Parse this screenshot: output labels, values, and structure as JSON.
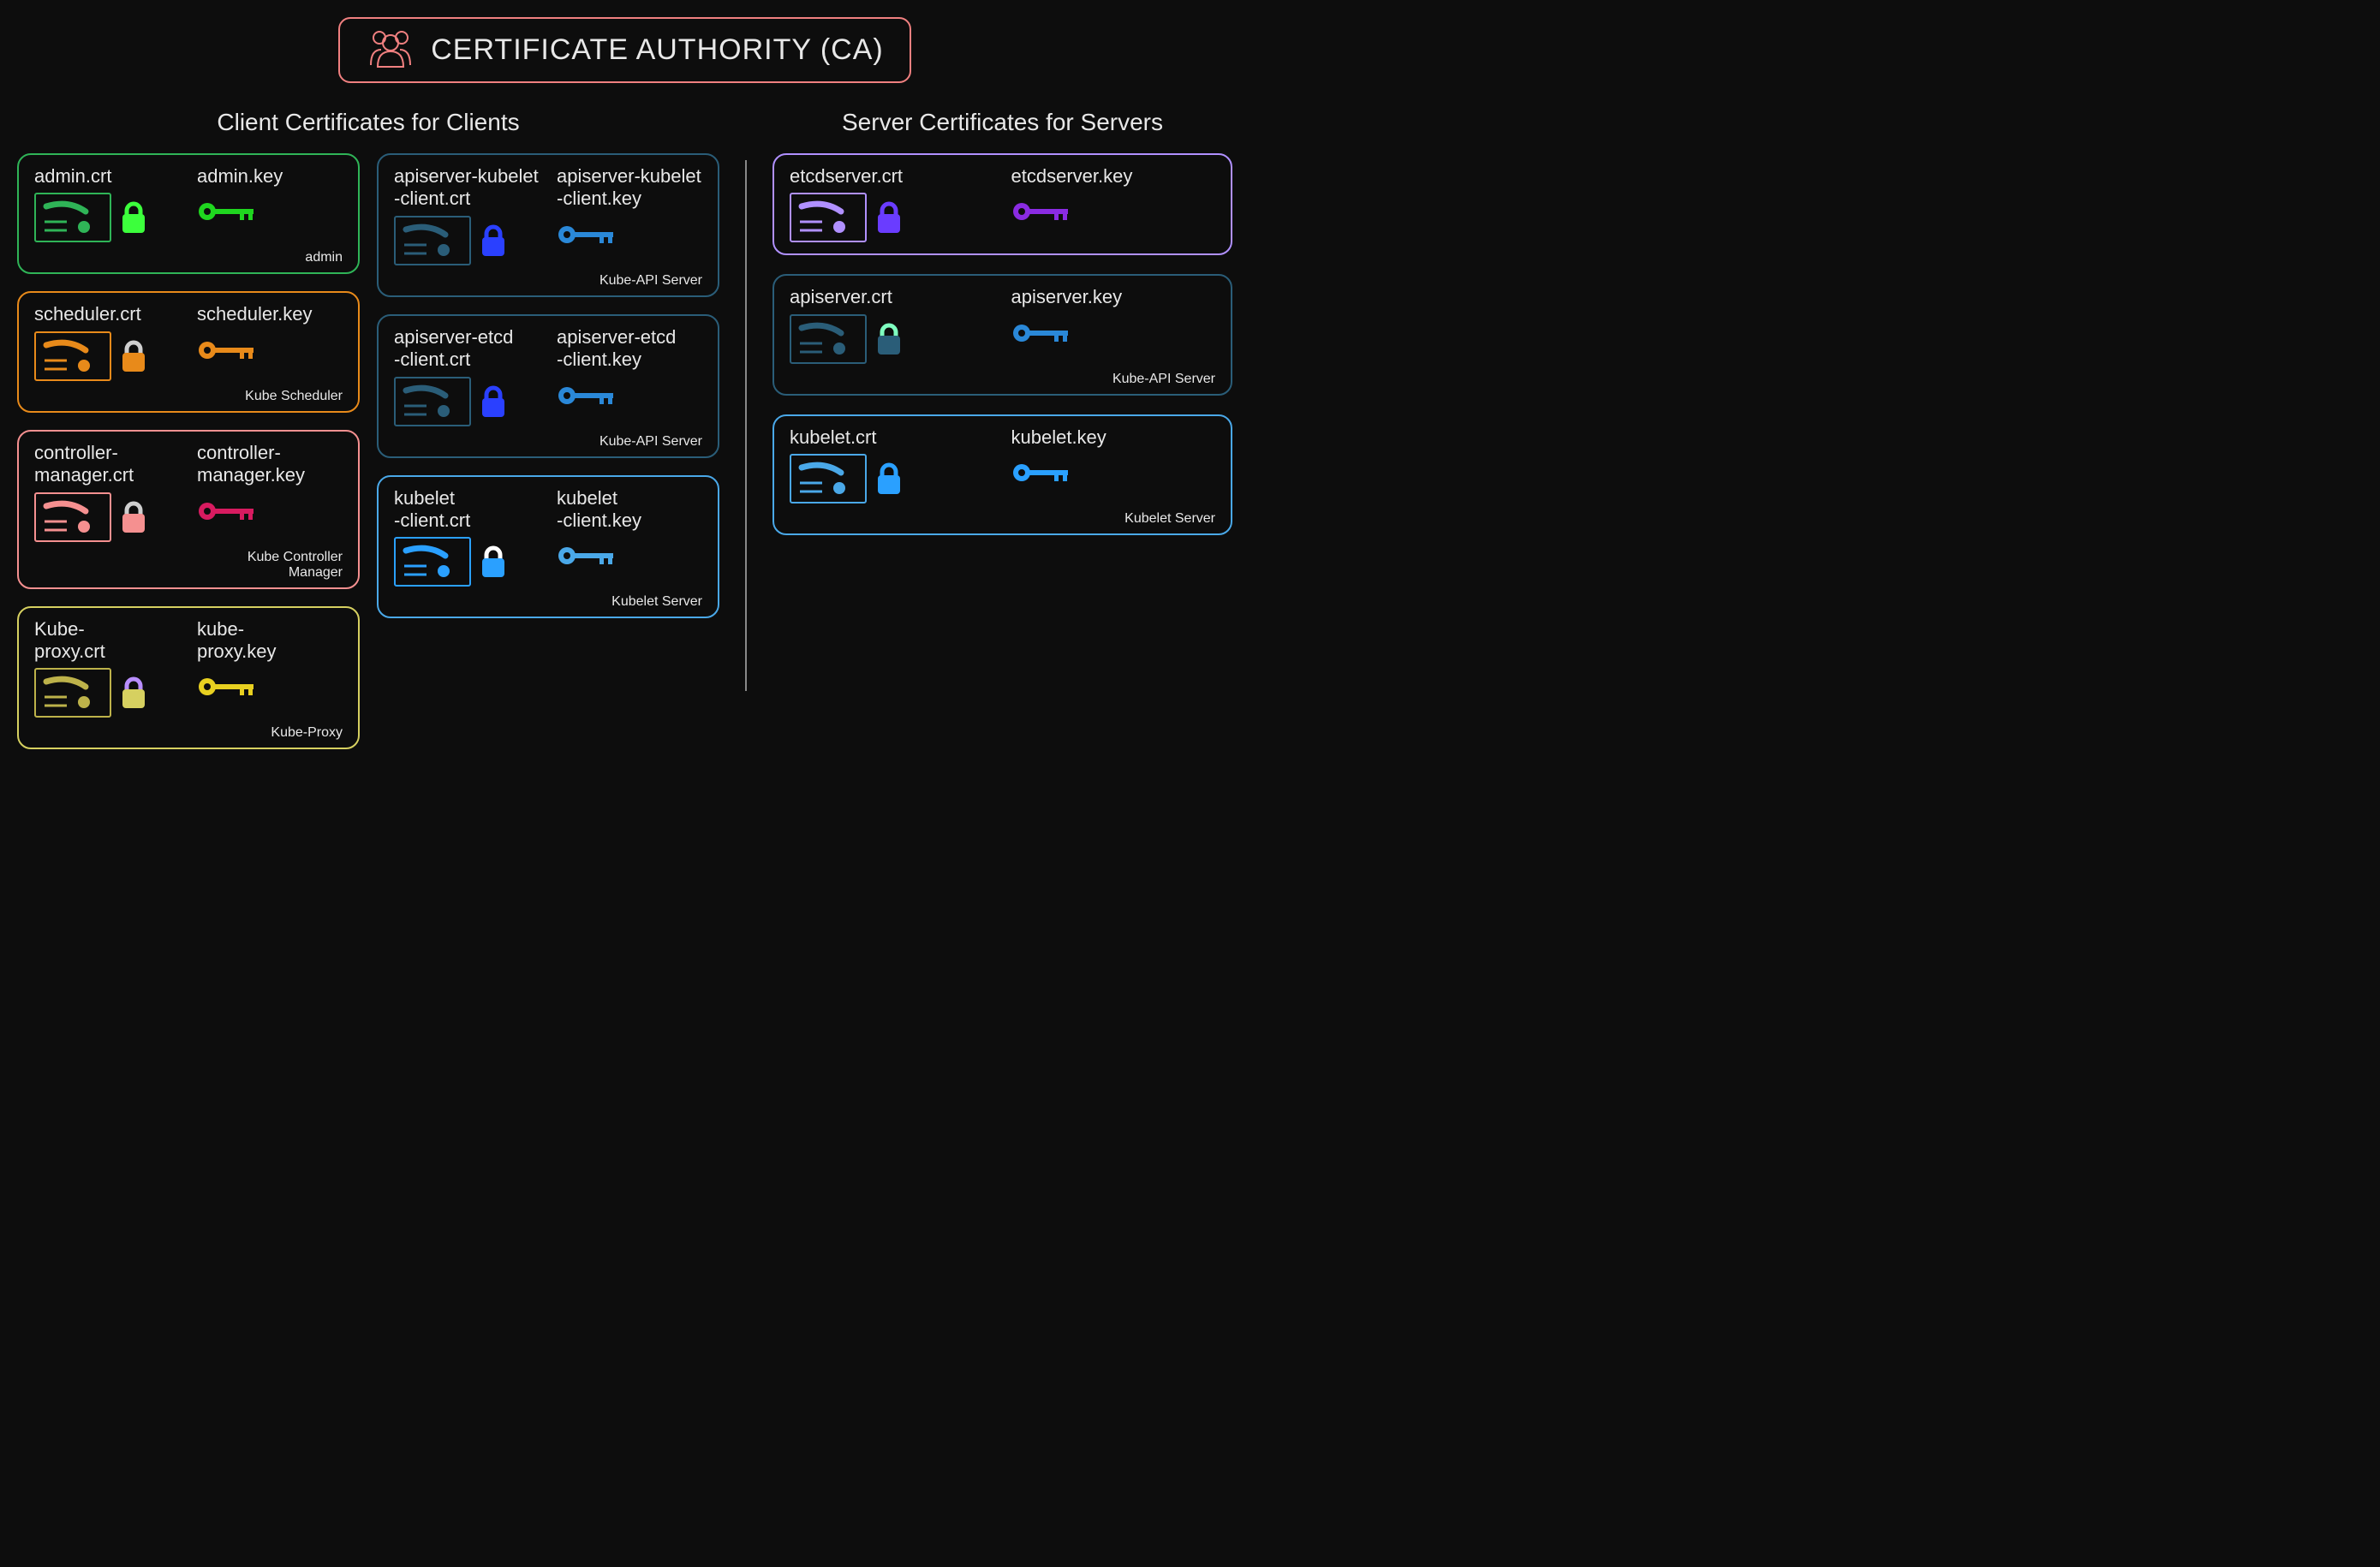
{
  "background_color": "#0d0d0d",
  "ca": {
    "title": "CERTIFICATE AUTHORITY (CA)",
    "border_color": "#f08080",
    "icon_color": "#f08080"
  },
  "sections": {
    "client_title": "Client Certificates for Clients",
    "server_title": "Server Certificates for Servers"
  },
  "client_left": [
    {
      "crt": "admin.crt",
      "key": "admin.key",
      "footer": "admin",
      "border": "#2fb457",
      "cert_icon": "#2fb457",
      "lock": "#3cff3c",
      "lock_body": "#3cff3c",
      "keycolor": "#1fd61f"
    },
    {
      "crt": "scheduler.crt",
      "key": "scheduler.key",
      "footer": "Kube Scheduler",
      "border": "#e88a1a",
      "cert_icon": "#e88a1a",
      "lock": "#cfcfcf",
      "lock_body": "#e88a1a",
      "keycolor": "#e88a1a"
    },
    {
      "crt": "controller-\nmanager.crt",
      "key": "controller-\nmanager.key",
      "footer": "Kube Controller\nManager",
      "border": "#f59090",
      "cert_icon": "#f59090",
      "lock": "#cfcfcf",
      "lock_body": "#f59090",
      "keycolor": "#d81b60"
    },
    {
      "crt": "Kube-\nproxy.crt",
      "key": "kube-\nproxy.key",
      "footer": "Kube-Proxy",
      "border": "#d6d060",
      "cert_icon": "#bdb24a",
      "lock": "#b98eff",
      "lock_body": "#d6d060",
      "keycolor": "#e8d020"
    }
  ],
  "client_right": [
    {
      "crt": "apiserver-kubelet\n-client.crt",
      "key": "apiserver-kubelet\n-client.key",
      "footer": "Kube-API Server",
      "border": "#2a5d78",
      "cert_icon": "#2a5d78",
      "lock": "#2a40ff",
      "lock_body": "#2a40ff",
      "keycolor": "#2a88d8"
    },
    {
      "crt": "apiserver-etcd\n-client.crt",
      "key": "apiserver-etcd\n-client.key",
      "footer": "Kube-API Server",
      "border": "#2a5d78",
      "cert_icon": "#2a5d78",
      "lock": "#2a40ff",
      "lock_body": "#2a40ff",
      "keycolor": "#2a88d8"
    },
    {
      "crt": "kubelet\n-client.crt",
      "key": "kubelet\n-client.key",
      "footer": "Kubelet Server",
      "border": "#4aa8e8",
      "cert_icon": "#2aa0ff",
      "lock": "#ffffff",
      "lock_body": "#2aa0ff",
      "keycolor": "#4aa8e8"
    }
  ],
  "server": [
    {
      "crt": "etcdserver.crt",
      "key": "etcdserver.key",
      "footer": "",
      "border": "#b090ff",
      "cert_icon": "#b090ff",
      "lock": "#6a3cff",
      "lock_body": "#6a3cff",
      "keycolor": "#8a2be2"
    },
    {
      "crt": "apiserver.crt",
      "key": "apiserver.key",
      "footer": "Kube-API Server",
      "border": "#2a5d78",
      "cert_icon": "#2a5d78",
      "lock": "#7fffc0",
      "lock_body": "#2a5d78",
      "keycolor": "#2a88d8"
    },
    {
      "crt": "kubelet.crt",
      "key": "kubelet.key",
      "footer": "Kubelet Server",
      "border": "#4aa8e8",
      "cert_icon": "#4aa8e8",
      "lock": "#2aa0ff",
      "lock_body": "#2aa0ff",
      "keycolor": "#2aa0ff"
    }
  ],
  "icon_sizes": {
    "cert_w": 90,
    "cert_h": 58,
    "lock": 34,
    "key": 60
  }
}
